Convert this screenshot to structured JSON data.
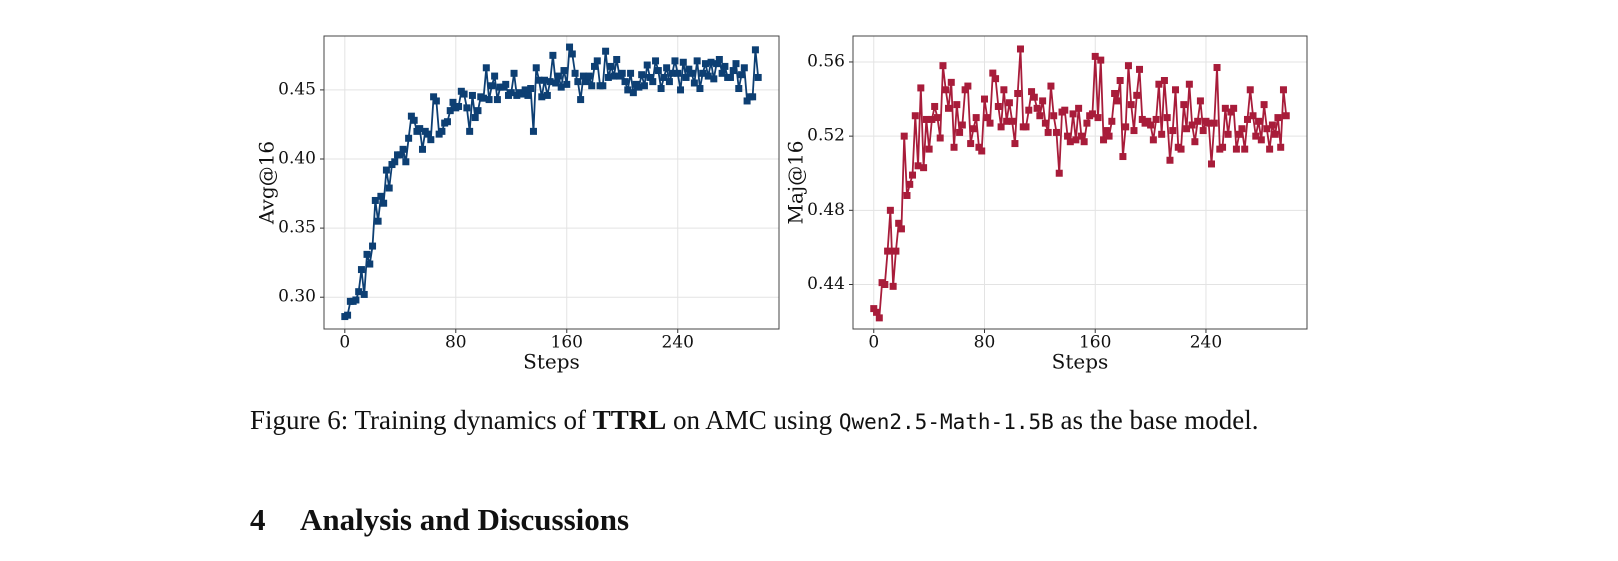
{
  "chart_data": [
    {
      "type": "line",
      "ylabel": "Avg@16",
      "xlabel": "Steps",
      "color": "#0d3f73",
      "marker": "square",
      "grid": true,
      "xlim": [
        -15,
        313
      ],
      "xticks": [
        0,
        80,
        160,
        240
      ],
      "ylim": [
        0.277,
        0.489
      ],
      "yticks": [
        {
          "value": 0.3,
          "label": "0.30"
        },
        0.35,
        {
          "value": 0.4,
          "label": "0.40"
        },
        0.45
      ],
      "x": [
        0,
        2,
        4,
        6,
        8,
        10,
        12,
        14,
        16,
        18,
        20,
        22,
        24,
        26,
        28,
        30,
        32,
        34,
        36,
        38,
        40,
        42,
        44,
        46,
        48,
        50,
        52,
        54,
        56,
        58,
        60,
        62,
        64,
        66,
        68,
        70,
        72,
        74,
        76,
        78,
        80,
        82,
        84,
        86,
        88,
        90,
        92,
        94,
        96,
        98,
        100,
        102,
        104,
        106,
        108,
        110,
        112,
        114,
        116,
        118,
        120,
        122,
        124,
        126,
        128,
        130,
        132,
        134,
        136,
        138,
        140,
        142,
        144,
        146,
        148,
        150,
        152,
        154,
        156,
        158,
        160,
        162,
        164,
        166,
        168,
        170,
        172,
        174,
        176,
        178,
        180,
        182,
        184,
        186,
        188,
        190,
        192,
        194,
        196,
        198,
        200,
        202,
        204,
        206,
        208,
        210,
        212,
        214,
        216,
        218,
        220,
        222,
        224,
        226,
        228,
        230,
        232,
        234,
        236,
        238,
        240,
        242,
        244,
        246,
        248,
        250,
        252,
        254,
        256,
        258,
        260,
        262,
        264,
        266,
        268,
        270,
        272,
        274,
        276,
        278,
        280,
        282,
        284,
        286,
        288,
        290,
        292,
        294,
        296,
        298
      ],
      "values": [
        0.286,
        0.287,
        0.297,
        0.297,
        0.298,
        0.304,
        0.32,
        0.302,
        0.331,
        0.324,
        0.337,
        0.37,
        0.355,
        0.373,
        0.368,
        0.392,
        0.379,
        0.396,
        0.398,
        0.403,
        0.403,
        0.407,
        0.398,
        0.415,
        0.431,
        0.428,
        0.42,
        0.422,
        0.407,
        0.42,
        0.418,
        0.414,
        0.445,
        0.442,
        0.418,
        0.42,
        0.426,
        0.427,
        0.435,
        0.441,
        0.437,
        0.438,
        0.449,
        0.447,
        0.437,
        0.42,
        0.446,
        0.43,
        0.435,
        0.445,
        0.444,
        0.466,
        0.443,
        0.453,
        0.46,
        0.443,
        0.452,
        0.452,
        0.454,
        0.446,
        0.448,
        0.462,
        0.446,
        0.448,
        0.447,
        0.45,
        0.446,
        0.451,
        0.42,
        0.466,
        0.457,
        0.445,
        0.457,
        0.446,
        0.456,
        0.475,
        0.455,
        0.46,
        0.452,
        0.464,
        0.454,
        0.481,
        0.476,
        0.462,
        0.456,
        0.443,
        0.46,
        0.456,
        0.46,
        0.453,
        0.467,
        0.471,
        0.453,
        0.453,
        0.478,
        0.459,
        0.467,
        0.46,
        0.472,
        0.46,
        0.462,
        0.456,
        0.45,
        0.462,
        0.448,
        0.454,
        0.452,
        0.461,
        0.453,
        0.468,
        0.459,
        0.456,
        0.471,
        0.464,
        0.451,
        0.459,
        0.466,
        0.456,
        0.462,
        0.471,
        0.462,
        0.45,
        0.47,
        0.459,
        0.465,
        0.462,
        0.455,
        0.471,
        0.451,
        0.462,
        0.469,
        0.46,
        0.47,
        0.458,
        0.469,
        0.472,
        0.462,
        0.467,
        0.459,
        0.459,
        0.464,
        0.469,
        0.451,
        0.461,
        0.466,
        0.442,
        0.445,
        0.445,
        0.479,
        0.459
      ]
    },
    {
      "type": "line",
      "ylabel": "Maj@16",
      "xlabel": "Steps",
      "color": "#a81c3a",
      "marker": "square",
      "grid": true,
      "xlim": [
        -15,
        313
      ],
      "xticks": [
        0,
        80,
        160,
        240
      ],
      "ylim": [
        0.416,
        0.574
      ],
      "yticks": [
        0.44,
        0.48,
        0.52,
        0.56
      ],
      "x": [
        0,
        2,
        4,
        6,
        8,
        10,
        12,
        14,
        16,
        18,
        20,
        22,
        24,
        26,
        28,
        30,
        32,
        34,
        36,
        38,
        40,
        42,
        44,
        46,
        48,
        50,
        52,
        54,
        56,
        58,
        60,
        62,
        64,
        66,
        68,
        70,
        72,
        74,
        76,
        78,
        80,
        82,
        84,
        86,
        88,
        90,
        92,
        94,
        96,
        98,
        100,
        102,
        104,
        106,
        108,
        110,
        112,
        114,
        116,
        118,
        120,
        122,
        124,
        126,
        128,
        130,
        132,
        134,
        136,
        138,
        140,
        142,
        144,
        146,
        148,
        150,
        152,
        154,
        156,
        158,
        160,
        162,
        164,
        166,
        168,
        170,
        172,
        174,
        176,
        178,
        180,
        182,
        184,
        186,
        188,
        190,
        192,
        194,
        196,
        198,
        200,
        202,
        204,
        206,
        208,
        210,
        212,
        214,
        216,
        218,
        220,
        222,
        224,
        226,
        228,
        230,
        232,
        234,
        236,
        238,
        240,
        242,
        244,
        246,
        248,
        250,
        252,
        254,
        256,
        258,
        260,
        262,
        264,
        266,
        268,
        270,
        272,
        274,
        276,
        278,
        280,
        282,
        284,
        286,
        288,
        290,
        292,
        294,
        296,
        298
      ],
      "values": [
        0.427,
        0.425,
        0.422,
        0.441,
        0.44,
        0.458,
        0.48,
        0.439,
        0.458,
        0.473,
        0.47,
        0.52,
        0.488,
        0.494,
        0.499,
        0.531,
        0.504,
        0.546,
        0.503,
        0.529,
        0.513,
        0.529,
        0.536,
        0.53,
        0.519,
        0.558,
        0.545,
        0.535,
        0.549,
        0.514,
        0.537,
        0.522,
        0.526,
        0.545,
        0.547,
        0.516,
        0.524,
        0.53,
        0.514,
        0.512,
        0.54,
        0.53,
        0.527,
        0.554,
        0.551,
        0.536,
        0.525,
        0.545,
        0.528,
        0.538,
        0.528,
        0.516,
        0.543,
        0.567,
        0.525,
        0.525,
        0.534,
        0.544,
        0.541,
        0.535,
        0.531,
        0.539,
        0.527,
        0.522,
        0.547,
        0.531,
        0.522,
        0.5,
        0.533,
        0.534,
        0.52,
        0.517,
        0.532,
        0.518,
        0.535,
        0.52,
        0.517,
        0.527,
        0.531,
        0.532,
        0.563,
        0.53,
        0.561,
        0.518,
        0.523,
        0.52,
        0.528,
        0.543,
        0.539,
        0.55,
        0.509,
        0.525,
        0.558,
        0.537,
        0.523,
        0.542,
        0.556,
        0.529,
        0.527,
        0.528,
        0.526,
        0.518,
        0.529,
        0.548,
        0.521,
        0.55,
        0.53,
        0.507,
        0.523,
        0.545,
        0.514,
        0.513,
        0.537,
        0.524,
        0.548,
        0.526,
        0.517,
        0.528,
        0.539,
        0.523,
        0.528,
        0.527,
        0.505,
        0.527,
        0.557,
        0.513,
        0.514,
        0.535,
        0.521,
        0.533,
        0.535,
        0.513,
        0.521,
        0.524,
        0.513,
        0.529,
        0.545,
        0.531,
        0.52,
        0.528,
        0.518,
        0.537,
        0.524,
        0.513,
        0.526,
        0.521,
        0.53,
        0.514,
        0.545,
        0.531
      ]
    }
  ],
  "caption": [
    "Figure 6: Training dynamics of",
    "TTRL",
    "on AMC using",
    "Qwen2.5-Math-1.5B",
    "as the base model."
  ],
  "section": {
    "number": "4",
    "title": "Analysis and Discussions"
  }
}
